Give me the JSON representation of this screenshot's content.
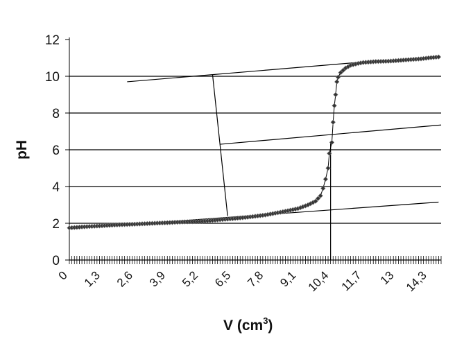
{
  "chart_data": {
    "type": "line",
    "title": "",
    "xlabel": "V (cm",
    "xlabel_sup": "3",
    "xlabel_close": ")",
    "ylabel": "pH",
    "xlim": [
      0,
      14.8
    ],
    "ylim": [
      0,
      12
    ],
    "y_ticks": [
      "0",
      "2",
      "4",
      "6",
      "8",
      "10",
      "12"
    ],
    "x_ticks": [
      "0",
      "1,3",
      "2,6",
      "3,9",
      "5,2",
      "6,5",
      "7,8",
      "9,1",
      "10,4",
      "11,7",
      "13",
      "14,3"
    ],
    "grid": "horizontal",
    "marker": "diamond",
    "line_color": "#000000",
    "series": [
      {
        "x": [
          0,
          0.5,
          1,
          1.5,
          2,
          2.6,
          3.2,
          3.9,
          4.5,
          5.2,
          5.8,
          6.5,
          7.1,
          7.8,
          8.4,
          9.1,
          9.5,
          9.8,
          10.0,
          10.1,
          10.2,
          10.3,
          10.35,
          10.45,
          10.5,
          10.55,
          10.6,
          10.65,
          10.7,
          10.8,
          11.0,
          11.2,
          11.5,
          11.7,
          12.2,
          12.7,
          13.0,
          13.5,
          14.0,
          14.3,
          14.7
        ],
        "y": [
          1.75,
          1.8,
          1.84,
          1.88,
          1.92,
          1.95,
          1.99,
          2.03,
          2.07,
          2.1,
          2.17,
          2.25,
          2.33,
          2.45,
          2.6,
          2.8,
          3.0,
          3.2,
          3.5,
          3.9,
          4.4,
          5.0,
          5.8,
          6.4,
          7.5,
          8.4,
          9.0,
          9.7,
          9.95,
          10.2,
          10.45,
          10.6,
          10.7,
          10.75,
          10.8,
          10.82,
          10.85,
          10.9,
          10.95,
          11.0,
          11.05
        ]
      }
    ],
    "construction_lines": [
      {
        "name": "lower-tangent",
        "from": [
          0,
          1.7
        ],
        "to": [
          14.7,
          3.15
        ]
      },
      {
        "name": "upper-tangent",
        "from": [
          2.3,
          9.7
        ],
        "to": [
          11.9,
          10.8
        ]
      },
      {
        "name": "middle-line",
        "from": [
          6.0,
          6.3
        ],
        "to": [
          14.8,
          7.35
        ]
      },
      {
        "name": "connector-line",
        "from": [
          5.7,
          10.1
        ],
        "to": [
          6.3,
          2.4
        ]
      },
      {
        "name": "equivalence-line",
        "from": [
          10.4,
          0
        ],
        "to": [
          10.4,
          6.4
        ]
      }
    ]
  }
}
